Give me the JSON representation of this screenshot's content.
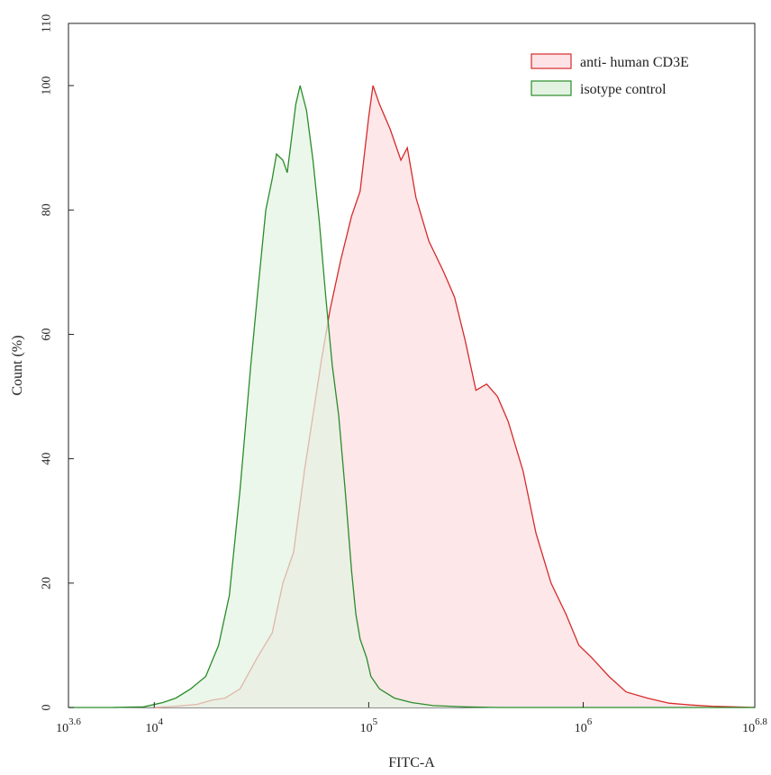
{
  "chart_data": {
    "type": "area",
    "title": "",
    "xlabel": "FITC-A",
    "ylabel": "Count  (%)",
    "x_scale": "log10",
    "xlim_log10": [
      3.6,
      6.8
    ],
    "ylim": [
      0,
      110
    ],
    "grid": false,
    "legend_position": "top-right",
    "x_ticks": [
      {
        "exp": 3.6,
        "base": "10",
        "sup": "3.6"
      },
      {
        "exp": 4,
        "base": "10",
        "sup": "4"
      },
      {
        "exp": 5,
        "base": "10",
        "sup": "5"
      },
      {
        "exp": 6,
        "base": "10",
        "sup": "6"
      },
      {
        "exp": 6.8,
        "base": "10",
        "sup": "6.8"
      }
    ],
    "y_ticks": [
      0,
      20,
      40,
      60,
      80,
      100,
      110
    ],
    "series": [
      {
        "name": "anti- human CD3E",
        "stroke": "#d62a2a",
        "fill": "#fde3e5",
        "points": [
          [
            4.0,
            0
          ],
          [
            4.1,
            0.2
          ],
          [
            4.2,
            0.5
          ],
          [
            4.27,
            1.2
          ],
          [
            4.33,
            1.5
          ],
          [
            4.4,
            3
          ],
          [
            4.48,
            8
          ],
          [
            4.55,
            12
          ],
          [
            4.6,
            20
          ],
          [
            4.65,
            25
          ],
          [
            4.7,
            38
          ],
          [
            4.74,
            47
          ],
          [
            4.78,
            56
          ],
          [
            4.82,
            64
          ],
          [
            4.87,
            72
          ],
          [
            4.92,
            79
          ],
          [
            4.96,
            83
          ],
          [
            5.0,
            95
          ],
          [
            5.02,
            100
          ],
          [
            5.05,
            97
          ],
          [
            5.1,
            93
          ],
          [
            5.15,
            88
          ],
          [
            5.18,
            90
          ],
          [
            5.22,
            82
          ],
          [
            5.28,
            75
          ],
          [
            5.35,
            70
          ],
          [
            5.4,
            66
          ],
          [
            5.45,
            59
          ],
          [
            5.5,
            51
          ],
          [
            5.55,
            52
          ],
          [
            5.6,
            50
          ],
          [
            5.65,
            46
          ],
          [
            5.72,
            38
          ],
          [
            5.78,
            28
          ],
          [
            5.85,
            20
          ],
          [
            5.92,
            15
          ],
          [
            5.98,
            10
          ],
          [
            6.04,
            8
          ],
          [
            6.12,
            5
          ],
          [
            6.2,
            2.5
          ],
          [
            6.3,
            1.5
          ],
          [
            6.4,
            0.7
          ],
          [
            6.5,
            0.4
          ],
          [
            6.6,
            0.2
          ],
          [
            6.7,
            0.1
          ],
          [
            6.8,
            0
          ]
        ]
      },
      {
        "name": "isotype control",
        "stroke": "#2a8c2a",
        "fill": "#e3f3e1",
        "points": [
          [
            3.6,
            0
          ],
          [
            3.8,
            0
          ],
          [
            3.95,
            0.1
          ],
          [
            4.04,
            0.8
          ],
          [
            4.1,
            1.5
          ],
          [
            4.17,
            3
          ],
          [
            4.24,
            5
          ],
          [
            4.3,
            10
          ],
          [
            4.35,
            18
          ],
          [
            4.4,
            35
          ],
          [
            4.45,
            55
          ],
          [
            4.48,
            66
          ],
          [
            4.52,
            80
          ],
          [
            4.55,
            85
          ],
          [
            4.57,
            89
          ],
          [
            4.6,
            88
          ],
          [
            4.62,
            86
          ],
          [
            4.66,
            97
          ],
          [
            4.68,
            100
          ],
          [
            4.71,
            96
          ],
          [
            4.74,
            88
          ],
          [
            4.77,
            78
          ],
          [
            4.8,
            66
          ],
          [
            4.83,
            55
          ],
          [
            4.86,
            47
          ],
          [
            4.89,
            35
          ],
          [
            4.92,
            22
          ],
          [
            4.94,
            15
          ],
          [
            4.96,
            11
          ],
          [
            4.99,
            8
          ],
          [
            5.01,
            5
          ],
          [
            5.05,
            3
          ],
          [
            5.12,
            1.5
          ],
          [
            5.2,
            0.8
          ],
          [
            5.3,
            0.3
          ],
          [
            5.45,
            0.1
          ],
          [
            5.6,
            0
          ],
          [
            6.8,
            0
          ]
        ]
      }
    ]
  }
}
